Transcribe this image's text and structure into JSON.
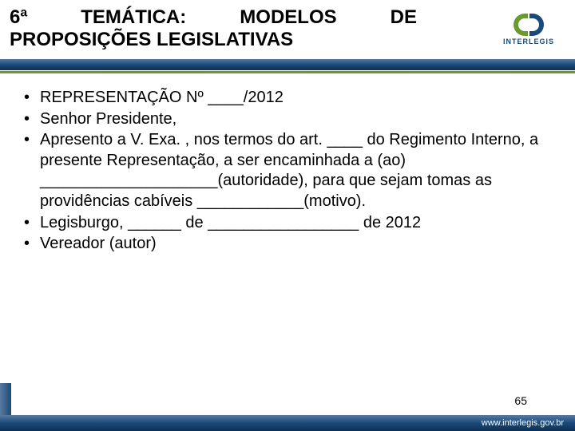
{
  "header": {
    "title_6a": "6ª",
    "title_tematica": "TEMÁTICA:",
    "title_modelos": "MODELOS",
    "title_de": "DE",
    "title_line2": "PROPOSIÇÕES LEGISLATIVAS",
    "logo_text": "INTERLEGIS"
  },
  "bullets": [
    "REPRESENTAÇÃO Nº ____/2012",
    "Senhor Presidente,",
    "Apresento a V. Exa. , nos termos do art. ____ do Regimento Interno, a presente Representação, a ser encaminhada a (ao) ____________________(autoridade), para que sejam tomas as providências cabíveis ____________(motivo).",
    "Legisburgo, ______ de _________________ de 2012",
    "Vereador (autor)"
  ],
  "page_number": "65",
  "footer_url": "www.interlegis.gov.br",
  "colors": {
    "blue_dark": "#1a4a7a",
    "blue_light": "#5a7aa0",
    "green": "#6a9a2f",
    "text": "#000000",
    "bg": "#ffffff"
  }
}
